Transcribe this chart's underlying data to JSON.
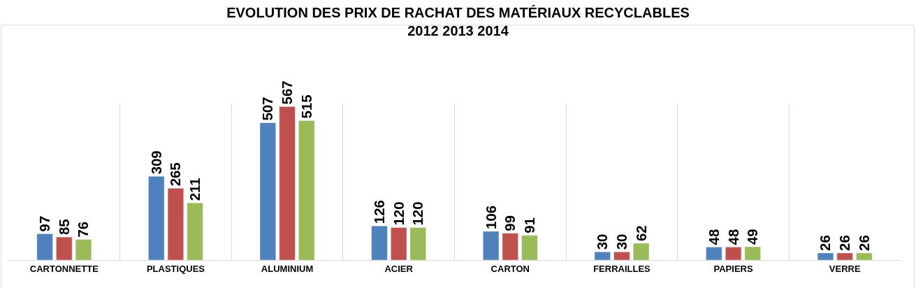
{
  "chart_data": {
    "type": "bar",
    "title": "EVOLUTION DES PRIX DE RACHAT DES MATÉRIAUX RECYCLABLES\n2012 2013 2014",
    "categories": [
      "CARTONNETTE",
      "PLASTIQUES",
      "ALUMINIUM",
      "ACIER",
      "CARTON",
      "FERRAILLES",
      "PAPIERS",
      "VERRE"
    ],
    "series": [
      {
        "color": "#4f81bd",
        "values": [
          97,
          309,
          507,
          126,
          106,
          30,
          48,
          26
        ]
      },
      {
        "color": "#c0504d",
        "values": [
          85,
          265,
          567,
          120,
          99,
          30,
          48,
          26
        ]
      },
      {
        "color": "#9bbb59",
        "values": [
          76,
          211,
          515,
          120,
          91,
          62,
          49,
          26
        ]
      }
    ],
    "data_labels": true,
    "grid": "x",
    "tick_labels": "x"
  }
}
